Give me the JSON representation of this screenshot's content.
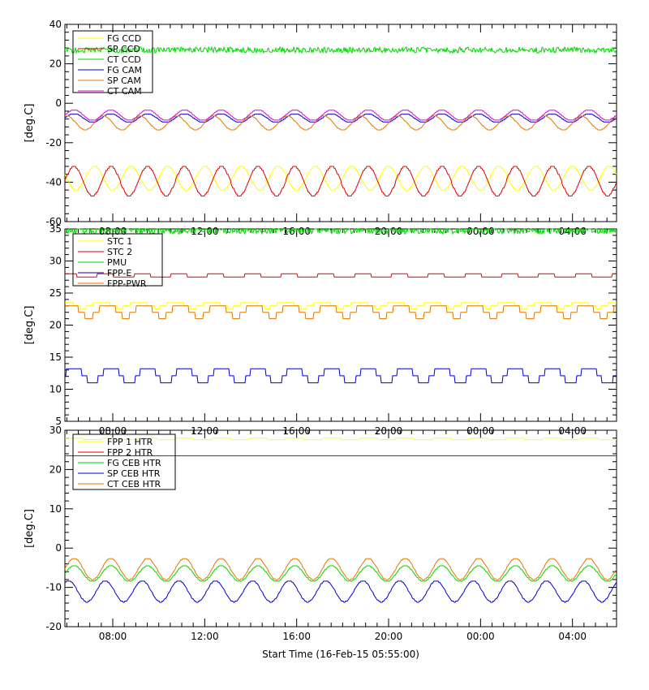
{
  "xlabel": "Start Time (16-Feb-15 05:55:00)",
  "colors": {
    "yellow": "#ffff00",
    "red": "#e00000",
    "green": "#00d800",
    "blue": "#0000cc",
    "orange": "#e07800",
    "magenta": "#e000e0"
  },
  "chart_data": [
    {
      "type": "line",
      "ylabel": "[deg.C]",
      "xlim": [
        5.9167,
        29.9167
      ],
      "ylim": [
        -60,
        40
      ],
      "yticks": [
        "-60",
        "-40",
        "-20",
        "0",
        "20",
        "40"
      ],
      "xticks": [
        {
          "value": 8,
          "label": "08:00"
        },
        {
          "value": 12,
          "label": "12:00"
        },
        {
          "value": 16,
          "label": "16:00"
        },
        {
          "value": 20,
          "label": "20:00"
        },
        {
          "value": 24,
          "label": "00:00"
        },
        {
          "value": 28,
          "label": "04:00"
        }
      ],
      "legend_position": "top-left",
      "series": [
        {
          "name": "FG CCD",
          "color": "#ffff00",
          "base": -38,
          "amp": 6,
          "period": 1.6,
          "phase": 0.9,
          "quant": 1,
          "noise": 0
        },
        {
          "name": "SP CCD",
          "color": "#e00000",
          "base": -39.5,
          "amp": 7.5,
          "period": 1.6,
          "phase": 0,
          "quant": 1,
          "noise": 0
        },
        {
          "name": "CT CCD",
          "color": "#00d800",
          "base": 27,
          "amp": 0,
          "period": 1.6,
          "phase": 0,
          "quant": 0,
          "noise": 1.5
        },
        {
          "name": "FG CAM",
          "color": "#0000cc",
          "base": -7.5,
          "amp": 2.2,
          "period": 1.6,
          "phase": 0,
          "quant": 0.5,
          "noise": 0
        },
        {
          "name": "SP CAM",
          "color": "#e07800",
          "base": -10,
          "amp": 3.5,
          "period": 1.6,
          "phase": 0.4,
          "quant": 0.5,
          "noise": 0
        },
        {
          "name": "CT CAM",
          "color": "#e000e0",
          "base": -6,
          "amp": 2.7,
          "period": 1.6,
          "phase": 0,
          "quant": 0.5,
          "noise": 0
        }
      ]
    },
    {
      "type": "line",
      "ylabel": "[deg.C]",
      "xlim": [
        5.9167,
        29.9167
      ],
      "ylim": [
        5,
        35
      ],
      "yticks": [
        "5",
        "10",
        "15",
        "20",
        "25",
        "30",
        "35"
      ],
      "xticks": [
        {
          "value": 8,
          "label": "08:00"
        },
        {
          "value": 12,
          "label": "12:00"
        },
        {
          "value": 16,
          "label": "16:00"
        },
        {
          "value": 20,
          "label": "20:00"
        },
        {
          "value": 24,
          "label": "00:00"
        },
        {
          "value": 28,
          "label": "04:00"
        }
      ],
      "legend_position": "top-left",
      "series": [
        {
          "name": "STC 1",
          "color": "#ffff00",
          "base": 23.2,
          "amp": 0.5,
          "period": 1.6,
          "phase": 0.5,
          "quant": 0.5,
          "noise": 0
        },
        {
          "name": "STC 2",
          "color": "#e00000",
          "base": 27.7,
          "amp": 0.3,
          "period": 1.6,
          "phase": 0.3,
          "quant": 0.5,
          "noise": 0
        },
        {
          "name": "PMU",
          "color": "#00d800",
          "base": 34.8,
          "amp": 0,
          "period": 1.6,
          "phase": 0,
          "quant": 0,
          "noise": 0.6
        },
        {
          "name": "FPP-E",
          "color": "#0000cc",
          "base": 12.3,
          "amp": 1.3,
          "period": 1.6,
          "phase": 0,
          "quant": 1.1,
          "noise": 0
        },
        {
          "name": "FPP-PWR",
          "color": "#e07800",
          "base": 22.3,
          "amp": 1,
          "period": 1.6,
          "phase": 0.2,
          "quant": 1,
          "noise": 0
        }
      ]
    },
    {
      "type": "line",
      "ylabel": "[deg.C]",
      "xlim": [
        5.9167,
        29.9167
      ],
      "ylim": [
        -20,
        30
      ],
      "yticks": [
        "-20",
        "-10",
        "0",
        "10",
        "20",
        "30"
      ],
      "xticks": [
        {
          "value": 8,
          "label": "08:00"
        },
        {
          "value": 12,
          "label": "12:00"
        },
        {
          "value": 16,
          "label": "16:00"
        },
        {
          "value": 20,
          "label": "20:00"
        },
        {
          "value": 24,
          "label": "00:00"
        },
        {
          "value": 28,
          "label": "04:00"
        }
      ],
      "legend_position": "top-left",
      "series": [
        {
          "name": "FPP 1 HTR",
          "color": "#ffff00",
          "base": 27.8,
          "amp": 0.2,
          "period": 1.6,
          "phase": 0,
          "quant": 0.4,
          "noise": 0
        },
        {
          "name": "FPP 2 HTR",
          "color": "#e00000",
          "base": 23.5,
          "amp": 0,
          "period": 1.6,
          "phase": 0,
          "quant": 0,
          "noise": 0
        },
        {
          "name": "FG CEB HTR",
          "color": "#00d800",
          "base": -6.5,
          "amp": 2,
          "period": 1.6,
          "phase": 0,
          "quant": 0.3,
          "noise": 0
        },
        {
          "name": "SP CEB HTR",
          "color": "#0000cc",
          "base": -11,
          "amp": 2.7,
          "period": 1.6,
          "phase": 0.3,
          "quant": 0.3,
          "noise": 0
        },
        {
          "name": "CT CEB HTR",
          "color": "#e07800",
          "base": -5.3,
          "amp": 2.7,
          "period": 1.6,
          "phase": 0,
          "quant": 0.3,
          "noise": 0
        }
      ]
    }
  ]
}
